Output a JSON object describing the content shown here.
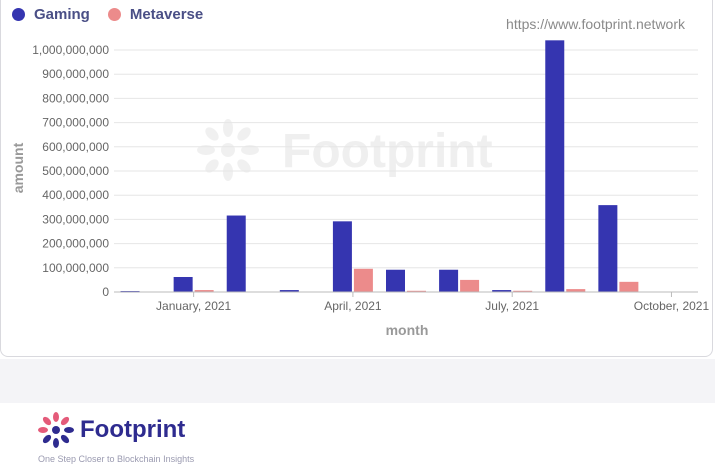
{
  "colors": {
    "gaming": "#3535b0",
    "metaverse": "#ec8b8b",
    "axis_text": "#666666",
    "grid": "#e6e6e6"
  },
  "legend": {
    "gaming": "Gaming",
    "metaverse": "Metaverse"
  },
  "source_url": "https://www.footprint.network",
  "watermark": "Footprint",
  "brand": {
    "name": "Footprint",
    "tagline": "One Step Closer to Blockchain Insights",
    "logo_icon": "footprint-flower-icon"
  },
  "chart_data": {
    "type": "bar",
    "title": "",
    "xlabel": "month",
    "ylabel": "amount",
    "ylim": [
      0,
      1050000000
    ],
    "yticks": [
      0,
      100000000,
      200000000,
      300000000,
      400000000,
      500000000,
      600000000,
      700000000,
      800000000,
      900000000,
      1000000000
    ],
    "ytick_labels": [
      "0",
      "100,000,000",
      "200,000,000",
      "300,000,000",
      "400,000,000",
      "500,000,000",
      "600,000,000",
      "700,000,000",
      "800,000,000",
      "900,000,000",
      "1,000,000,000"
    ],
    "categories": [
      "2020-12",
      "2021-01",
      "2021-02",
      "2021-03",
      "2021-04",
      "2021-05",
      "2021-06",
      "2021-07",
      "2021-08",
      "2021-09",
      "2021-10"
    ],
    "x_tick_labels": [
      {
        "category": "2021-01",
        "label": "January, 2021"
      },
      {
        "category": "2021-04",
        "label": "April, 2021"
      },
      {
        "category": "2021-07",
        "label": "July, 2021"
      },
      {
        "category": "2021-10",
        "label": "October, 2021"
      }
    ],
    "series": [
      {
        "name": "Gaming",
        "values": [
          4000000,
          62000000,
          316000000,
          8000000,
          292000000,
          92000000,
          92000000,
          8000000,
          1040000000,
          359000000,
          null
        ]
      },
      {
        "name": "Metaverse",
        "values": [
          0,
          8000000,
          0,
          0,
          96000000,
          5000000,
          50000000,
          5000000,
          12000000,
          42000000,
          null
        ]
      }
    ],
    "grid": true,
    "legend_position": "top-left"
  }
}
